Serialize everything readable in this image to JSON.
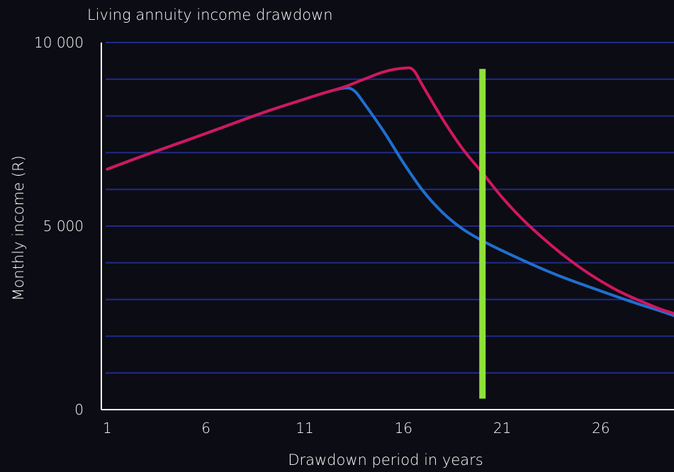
{
  "chart_data": {
    "type": "line",
    "title": "Living annuity income drawdown",
    "xlabel": "Drawdown period in years",
    "ylabel": "Monthly income (R)",
    "x_ticks": [
      1,
      6,
      11,
      16,
      21,
      26
    ],
    "x_tick_labels": [
      "1",
      "6",
      "11",
      "16",
      "21",
      "26"
    ],
    "xlim": [
      0.7,
      29.7
    ],
    "y_ticks": [
      0,
      5000,
      10000
    ],
    "y_tick_labels": [
      "0",
      "5 000",
      "10 000"
    ],
    "ylim": [
      0,
      10000
    ],
    "gridlines": [
      1000,
      2000,
      3000,
      4000,
      5000,
      6000,
      7000,
      8000,
      9000,
      10000
    ],
    "grid": true,
    "colors": {
      "background": "#0c0c14",
      "grid": "#1e2b8a",
      "axis": "#ffffff",
      "series_a": "#1f6fd1",
      "series_b": "#d0175f",
      "marker": "#8fe03a"
    },
    "series": [
      {
        "color": "#1f6fd1",
        "points": [
          [
            1,
            6550
          ],
          [
            3,
            6950
          ],
          [
            5,
            7330
          ],
          [
            7,
            7720
          ],
          [
            9,
            8110
          ],
          [
            11,
            8460
          ],
          [
            12,
            8630
          ],
          [
            13,
            8760
          ],
          [
            13.5,
            8690
          ],
          [
            14,
            8350
          ],
          [
            15,
            7580
          ],
          [
            16,
            6720
          ],
          [
            17,
            5950
          ],
          [
            18,
            5360
          ],
          [
            19,
            4920
          ],
          [
            20,
            4600
          ],
          [
            21,
            4330
          ],
          [
            22,
            4080
          ],
          [
            23,
            3840
          ],
          [
            24,
            3620
          ],
          [
            25,
            3420
          ],
          [
            26,
            3230
          ],
          [
            27,
            3040
          ],
          [
            28,
            2860
          ],
          [
            29,
            2690
          ],
          [
            29.7,
            2560
          ]
        ]
      },
      {
        "color": "#d0175f",
        "points": [
          [
            1,
            6550
          ],
          [
            3,
            6950
          ],
          [
            5,
            7330
          ],
          [
            7,
            7720
          ],
          [
            9,
            8110
          ],
          [
            11,
            8460
          ],
          [
            12,
            8630
          ],
          [
            13,
            8790
          ],
          [
            14,
            9000
          ],
          [
            15,
            9200
          ],
          [
            16,
            9300
          ],
          [
            16.5,
            9250
          ],
          [
            17,
            8800
          ],
          [
            18,
            7900
          ],
          [
            19,
            7100
          ],
          [
            20,
            6450
          ],
          [
            21,
            5780
          ],
          [
            22,
            5200
          ],
          [
            23,
            4700
          ],
          [
            24,
            4250
          ],
          [
            25,
            3850
          ],
          [
            26,
            3500
          ],
          [
            27,
            3200
          ],
          [
            28,
            2960
          ],
          [
            29,
            2740
          ],
          [
            29.7,
            2620
          ]
        ]
      }
    ],
    "marker_line": {
      "x": 20,
      "y_from": 300,
      "y_to": 9280
    }
  }
}
